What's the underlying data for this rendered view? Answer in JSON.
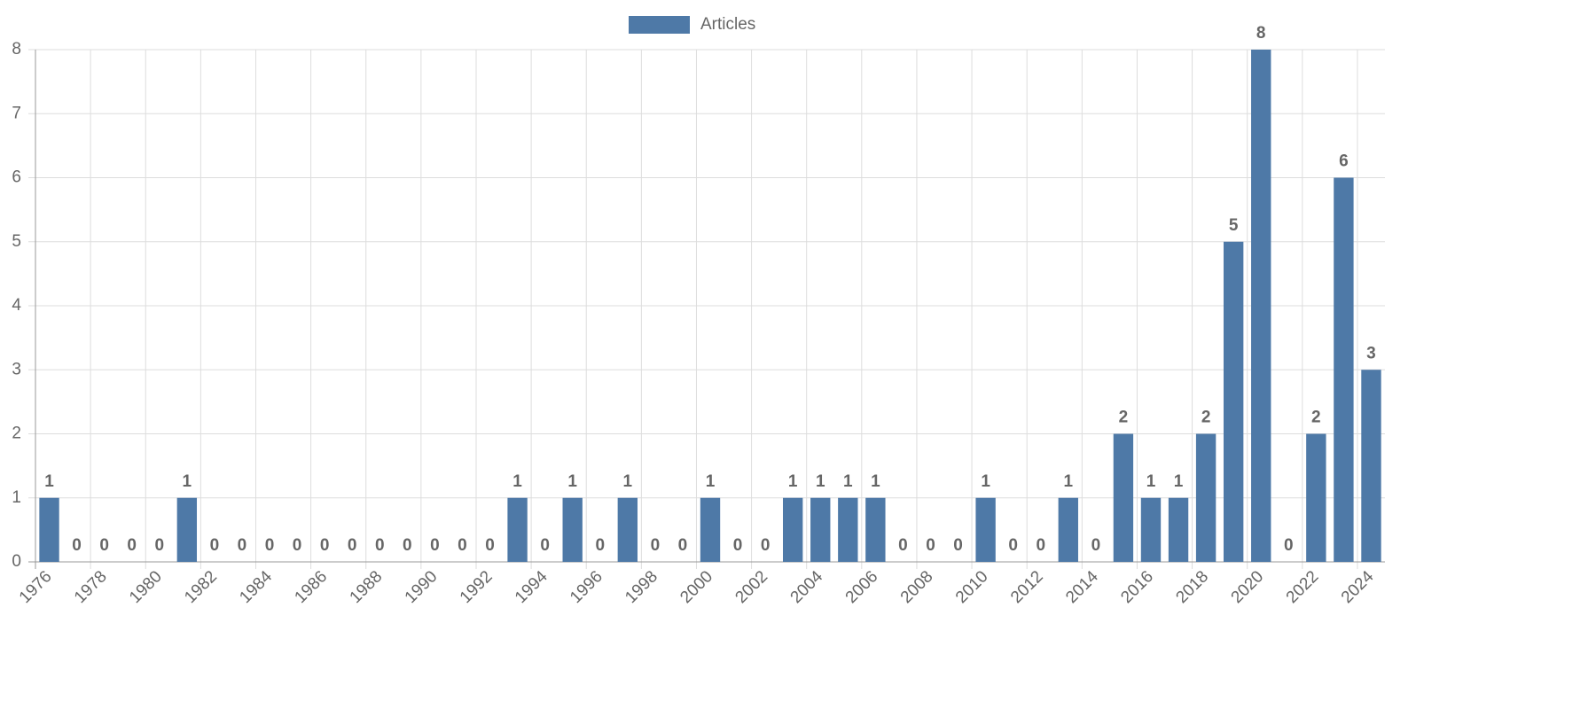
{
  "chart_data": {
    "type": "bar",
    "legend": "top",
    "grid": true,
    "categories": [
      "1976",
      null,
      "1978",
      null,
      "1980",
      null,
      "1982",
      null,
      "1984",
      null,
      "1986",
      null,
      "1988",
      null,
      "1990",
      null,
      "1992",
      null,
      "1994",
      null,
      "1996",
      null,
      "1998",
      null,
      "2000",
      null,
      "2002",
      null,
      "2004",
      null,
      "2006",
      null,
      "2008",
      null,
      "2010",
      null,
      "2012",
      null,
      "2014",
      null,
      "2016",
      null,
      "2018",
      null,
      "2020",
      null,
      "2022",
      null,
      "2024"
    ],
    "series": [
      {
        "name": "Articles",
        "color": "#4e79a7",
        "values": [
          1,
          0,
          0,
          0,
          0,
          1,
          0,
          0,
          0,
          0,
          0,
          0,
          0,
          0,
          0,
          0,
          0,
          1,
          0,
          1,
          0,
          1,
          0,
          0,
          1,
          0,
          0,
          1,
          1,
          1,
          1,
          0,
          0,
          0,
          1,
          0,
          0,
          1,
          0,
          2,
          1,
          1,
          2,
          5,
          8,
          0,
          2,
          6,
          3
        ]
      }
    ],
    "ylim": [
      0,
      8
    ],
    "yticks": [
      0,
      1,
      2,
      3,
      4,
      5,
      6,
      7,
      8
    ]
  }
}
